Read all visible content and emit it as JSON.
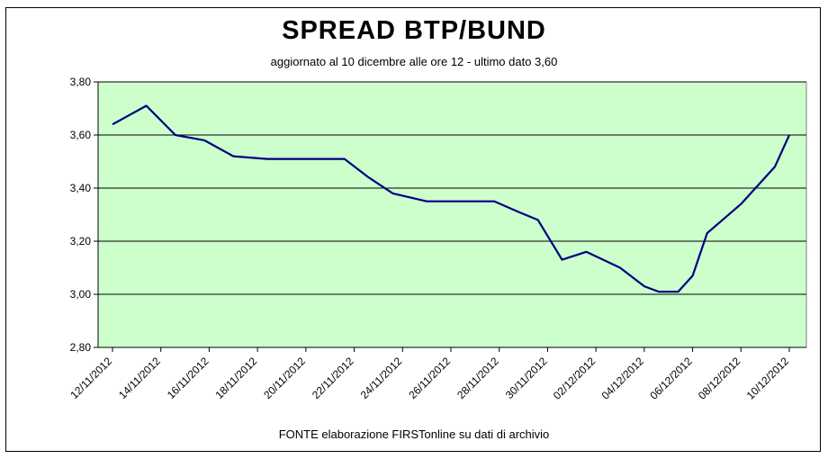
{
  "chart_data": {
    "type": "line",
    "title": "SPREAD  BTP/BUND",
    "subtitle": "aggiornato al 10  dicembre alle ore 12 - ultimo dato 3,60",
    "source": "FONTE elaborazione FIRSTonline su dati di archivio",
    "xlabel": "",
    "ylabel": "",
    "ylim": [
      2.8,
      3.8
    ],
    "yticks": [
      "2,80",
      "3,00",
      "3,20",
      "3,40",
      "3,60",
      "3,80"
    ],
    "ytick_values": [
      2.8,
      3.0,
      3.2,
      3.4,
      3.6,
      3.8
    ],
    "xtick_labels": [
      "12/11/2012",
      "14/11/2012",
      "16/11/2012",
      "18/11/2012",
      "20/11/2012",
      "22/11/2012",
      "24/11/2012",
      "26/11/2012",
      "28/11/2012",
      "30/11/2012",
      "02/12/2012",
      "04/12/2012",
      "06/12/2012",
      "08/12/2012",
      "10/12/2012"
    ],
    "grid": "horizontal",
    "plot_background": "#ccffcc",
    "line_color": "#000080",
    "series": [
      {
        "x": [
          0,
          0.7,
          1.3,
          1.9,
          2.5,
          3.2,
          4.0,
          4.8,
          5.3,
          5.8,
          6.5,
          7.2,
          7.9,
          8.4,
          8.8,
          9.3,
          9.8,
          10.5,
          11.0,
          11.3,
          11.7,
          12.0,
          12.3,
          13.0,
          13.7,
          14.0
        ],
        "y": [
          3.64,
          3.71,
          3.6,
          3.58,
          3.52,
          3.51,
          3.51,
          3.51,
          3.44,
          3.38,
          3.35,
          3.35,
          3.35,
          3.31,
          3.28,
          3.13,
          3.16,
          3.1,
          3.03,
          3.01,
          3.01,
          3.07,
          3.23,
          3.34,
          3.48,
          3.6
        ]
      }
    ]
  }
}
